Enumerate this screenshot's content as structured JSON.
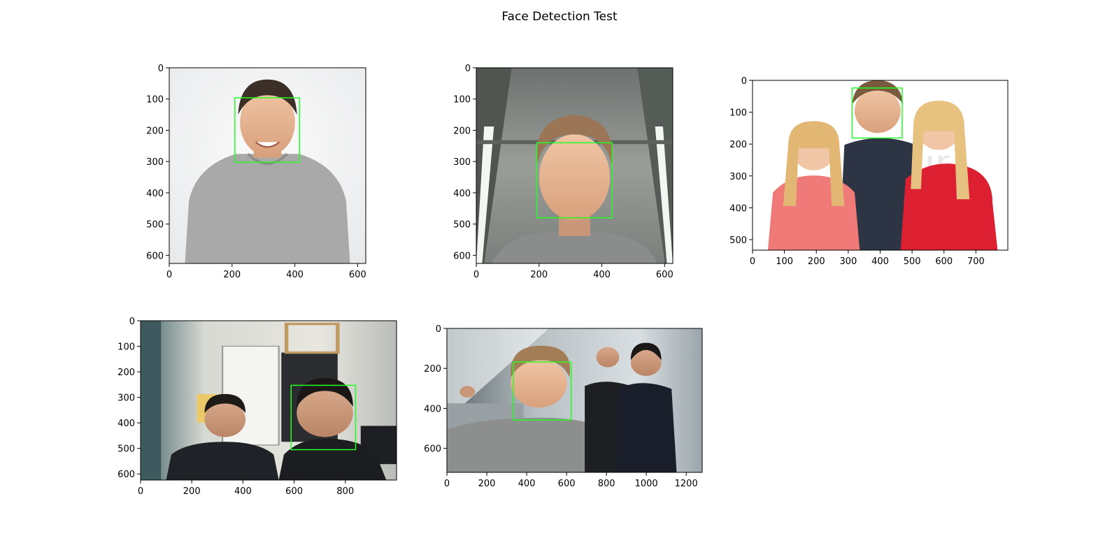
{
  "figure": {
    "title": "Face Detection Test"
  },
  "chart_data": [
    {
      "type": "image",
      "image_width": 626,
      "image_height": 626,
      "xlim": [
        0,
        626
      ],
      "ylim": [
        626,
        0
      ],
      "xticks": [
        0,
        200,
        400,
        600
      ],
      "yticks": [
        0,
        100,
        200,
        300,
        400,
        500,
        600
      ],
      "scene": "portrait-grey-shirt",
      "box_color": "#22ff22",
      "detections": [
        {
          "x": 209,
          "y": 96,
          "w": 206,
          "h": 206
        }
      ]
    },
    {
      "type": "image",
      "image_width": 626,
      "image_height": 626,
      "xlim": [
        0,
        626
      ],
      "ylim": [
        626,
        0
      ],
      "xticks": [
        0,
        200,
        400,
        600
      ],
      "yticks": [
        0,
        100,
        200,
        300,
        400,
        500,
        600
      ],
      "scene": "webcam-office-ceiling",
      "box_color": "#22ff22",
      "detections": [
        {
          "x": 193,
          "y": 240,
          "w": 240,
          "h": 240
        }
      ]
    },
    {
      "type": "image",
      "image_width": 800,
      "image_height": 533,
      "xlim": [
        0,
        800
      ],
      "ylim": [
        533,
        0
      ],
      "xticks": [
        0,
        100,
        200,
        300,
        400,
        500,
        600,
        700
      ],
      "yticks": [
        0,
        100,
        200,
        300,
        400,
        500
      ],
      "scene": "three-people-white-bg",
      "box_color": "#22ff22",
      "detections": [
        {
          "x": 312,
          "y": 24,
          "w": 157,
          "h": 157
        }
      ]
    },
    {
      "type": "image",
      "image_width": 1000,
      "image_height": 624,
      "xlim": [
        0,
        1000
      ],
      "ylim": [
        624,
        0
      ],
      "xticks": [
        0,
        200,
        400,
        600,
        800
      ],
      "yticks": [
        0,
        100,
        200,
        300,
        400,
        500,
        600
      ],
      "scene": "two-people-office",
      "box_color": "#22ff22",
      "detections": [
        {
          "x": 588,
          "y": 253,
          "w": 252,
          "h": 252
        }
      ]
    },
    {
      "type": "image",
      "image_width": 1280,
      "image_height": 720,
      "xlim": [
        0,
        1280
      ],
      "ylim": [
        720,
        0
      ],
      "xticks": [
        0,
        200,
        400,
        600,
        800,
        1000,
        1200
      ],
      "yticks": [
        0,
        200,
        400,
        600
      ],
      "scene": "three-people-selfie",
      "box_color": "#22ff22",
      "detections": [
        {
          "x": 333,
          "y": 168,
          "w": 290,
          "h": 290
        }
      ]
    }
  ]
}
